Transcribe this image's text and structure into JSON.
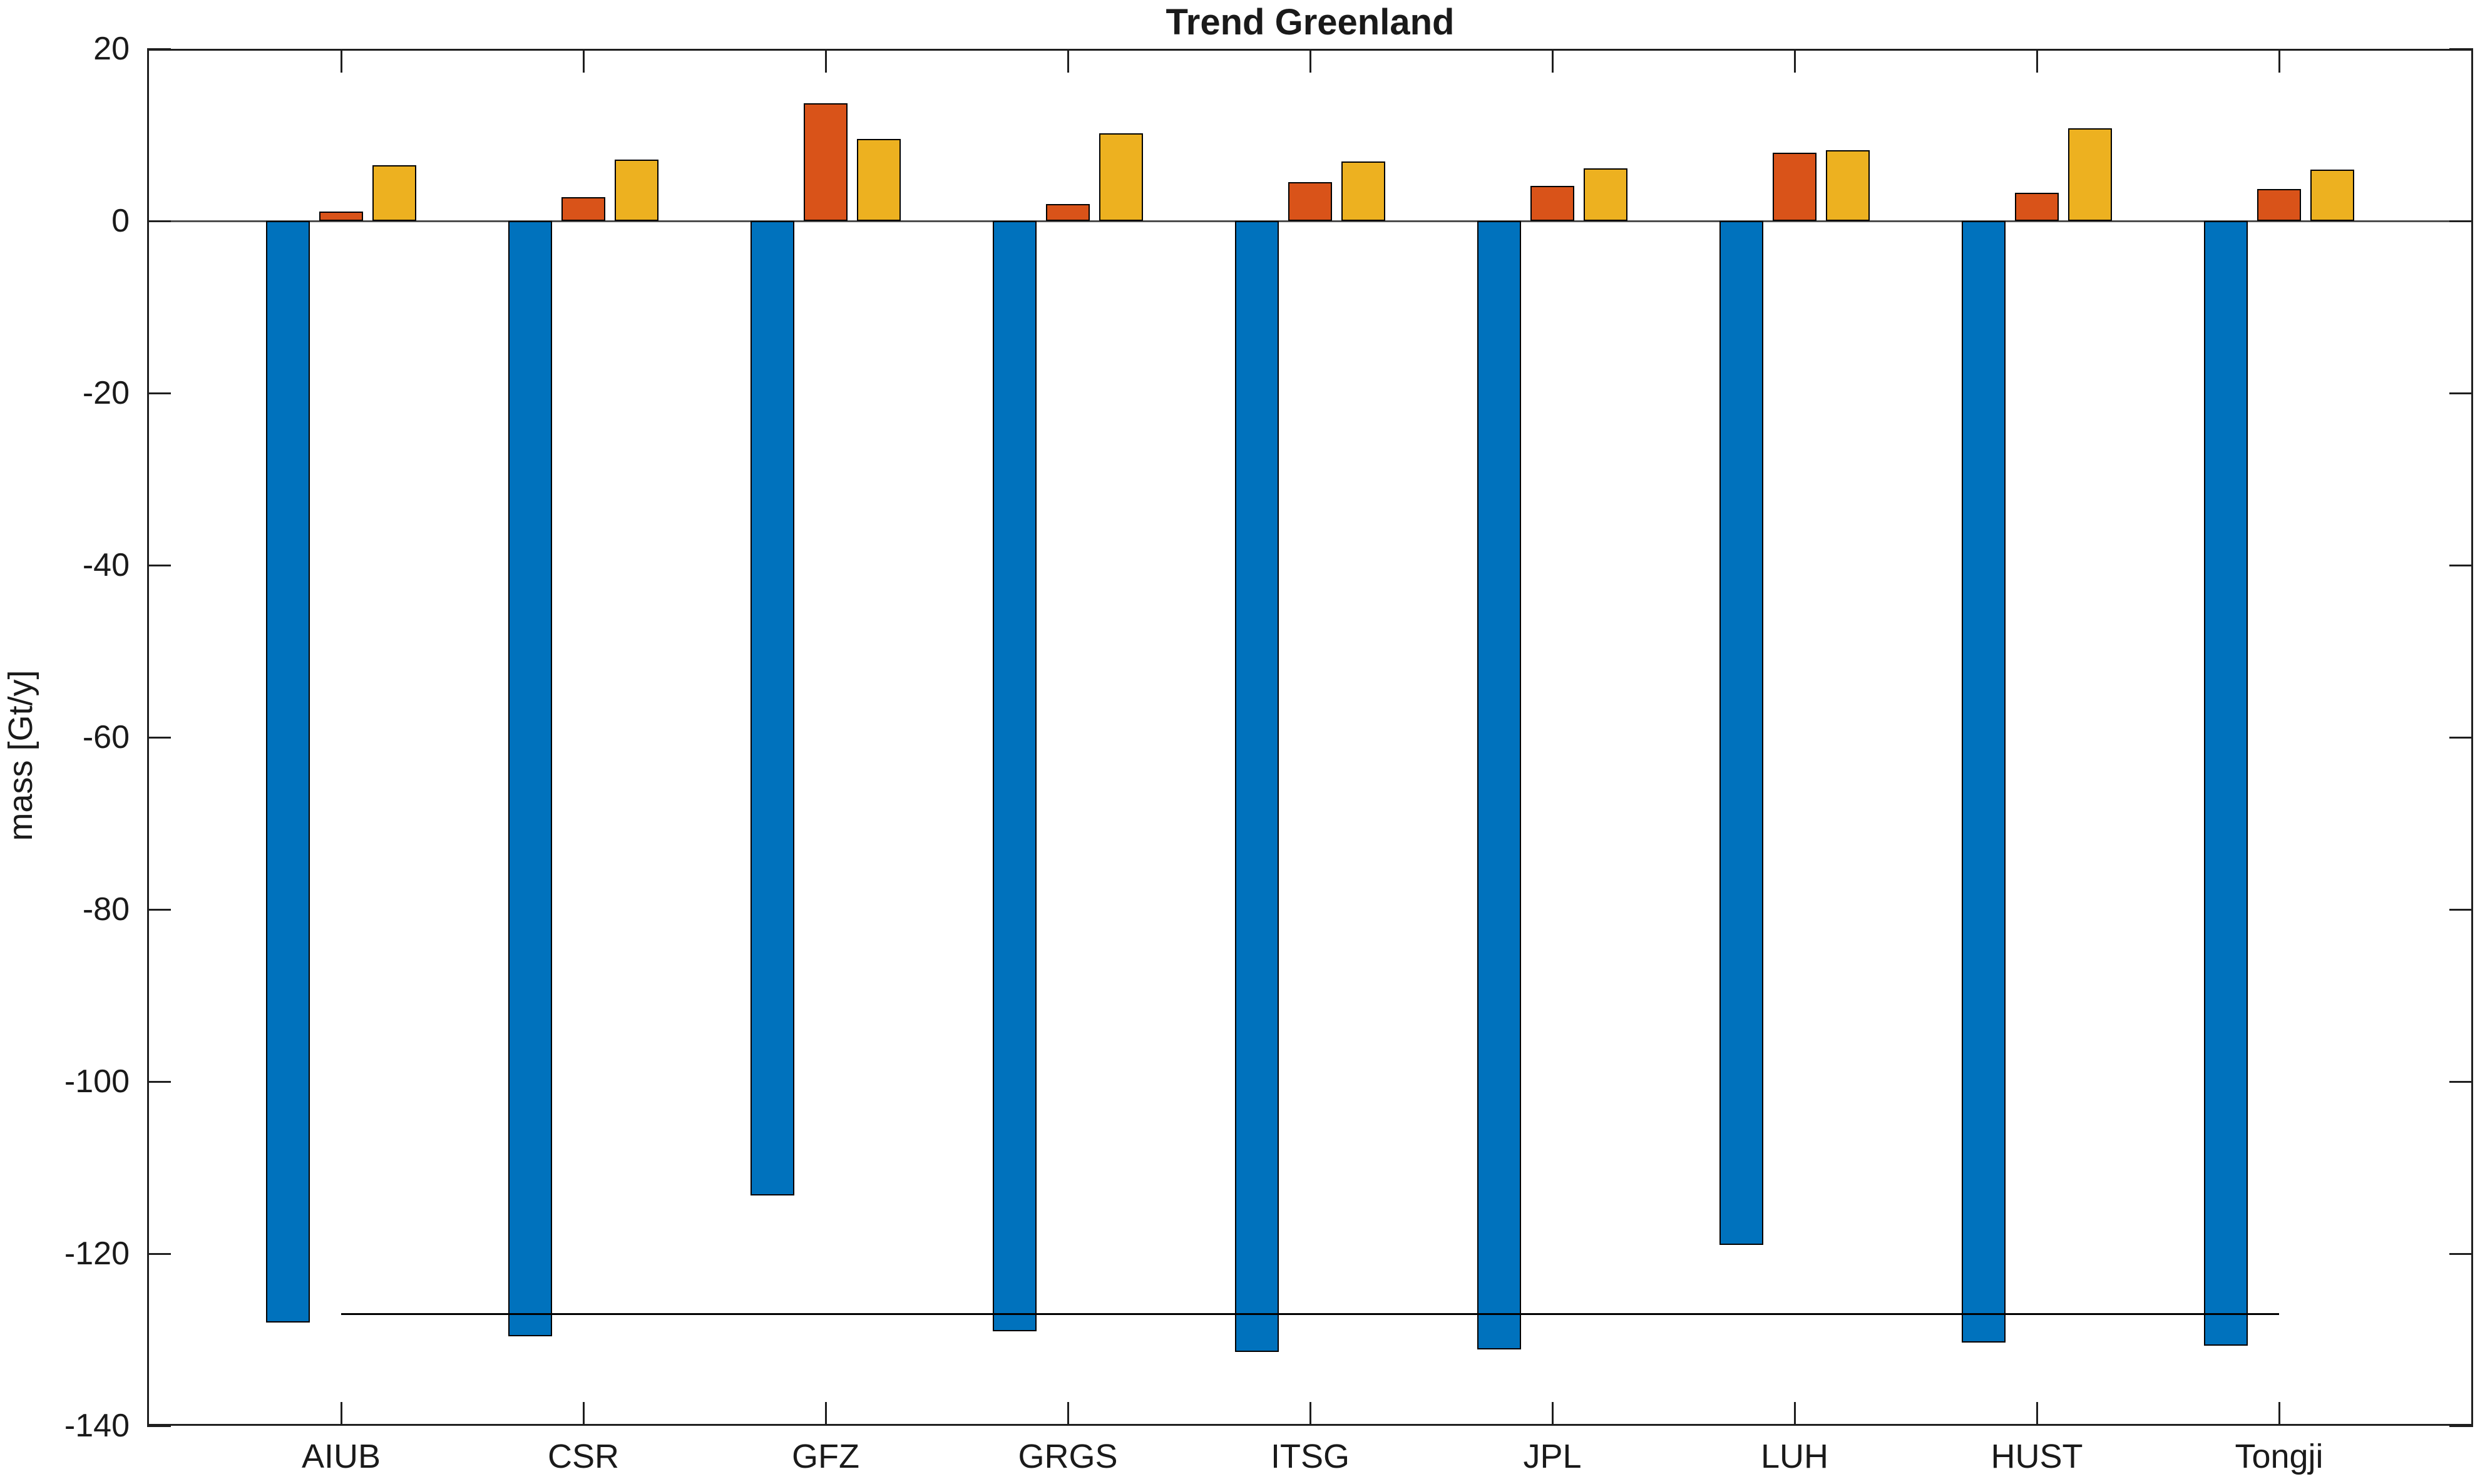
{
  "title": "Trend Greenland",
  "ylabel": "mass [Gt/y]",
  "colors": {
    "series_blue": "#0072BD",
    "series_orange": "#D95319",
    "series_yellow": "#EDB120",
    "bar_edge": "#000000",
    "axis": "#1f1f1f",
    "baseline": "#4d4d4d",
    "reference_line": "#000000",
    "background": "#ffffff"
  },
  "chart_data": {
    "type": "bar",
    "title": "Trend Greenland",
    "xlabel": "",
    "ylabel": "mass [Gt/y]",
    "categories": [
      "AIUB",
      "CSR",
      "GFZ",
      "GRGS",
      "ITSG",
      "JPL",
      "LUH",
      "HUST",
      "Tongji"
    ],
    "series": [
      {
        "name": "series_blue",
        "color": "#0072BD",
        "values": [
          -128.0,
          -129.6,
          -113.2,
          -129.0,
          -131.4,
          -131.1,
          -119.0,
          -130.3,
          -130.7
        ]
      },
      {
        "name": "series_orange",
        "color": "#D95319",
        "values": [
          1.1,
          2.8,
          13.7,
          2.0,
          4.5,
          4.1,
          7.9,
          3.3,
          3.7
        ]
      },
      {
        "name": "series_yellow",
        "color": "#EDB120",
        "values": [
          6.5,
          7.1,
          9.5,
          10.2,
          6.9,
          6.1,
          8.2,
          10.8,
          6.0
        ]
      }
    ],
    "yticks": [
      20,
      0,
      -20,
      -40,
      -60,
      -80,
      -100,
      -120,
      -140
    ],
    "ylim": [
      -140,
      20
    ],
    "reference_line": {
      "value": -127,
      "from_category": "AIUB",
      "to_category": "Tongji"
    },
    "grid": false,
    "legend": "none"
  }
}
